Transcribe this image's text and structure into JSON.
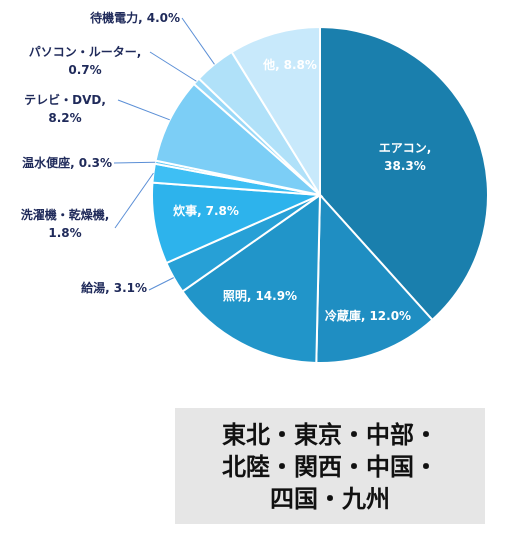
{
  "chart_data": {
    "type": "pie",
    "categories": [
      "エアコン,",
      "冷蔵庫,",
      "照明,",
      "給湯,",
      "炊事,",
      "洗濯機・乾燥機,",
      "温水便座,",
      "テレビ・DVD,",
      "パソコン・ルーター,",
      "待機電力,",
      "他,"
    ],
    "values": [
      38.3,
      12.0,
      14.9,
      3.1,
      7.8,
      1.8,
      0.3,
      8.2,
      0.7,
      4.0,
      8.8
    ],
    "value_labels": [
      "38.3%",
      "12.0%",
      "14.9%",
      "3.1%",
      "7.8%",
      "1.8%",
      "0.3%",
      "8.2%",
      "0.7%",
      "4.0%",
      "8.8%"
    ],
    "colors": [
      "#1a7fad",
      "#1f8ec2",
      "#2195c9",
      "#27a0d6",
      "#2db3ec",
      "#3ebff4",
      "#5bc8f5",
      "#7ccef6",
      "#9ad9f8",
      "#b0e1f9",
      "#c8e9fb"
    ]
  },
  "region_note": [
    "東北・東京・中部・",
    "北陸・関西・中国・",
    "四国・九州"
  ]
}
